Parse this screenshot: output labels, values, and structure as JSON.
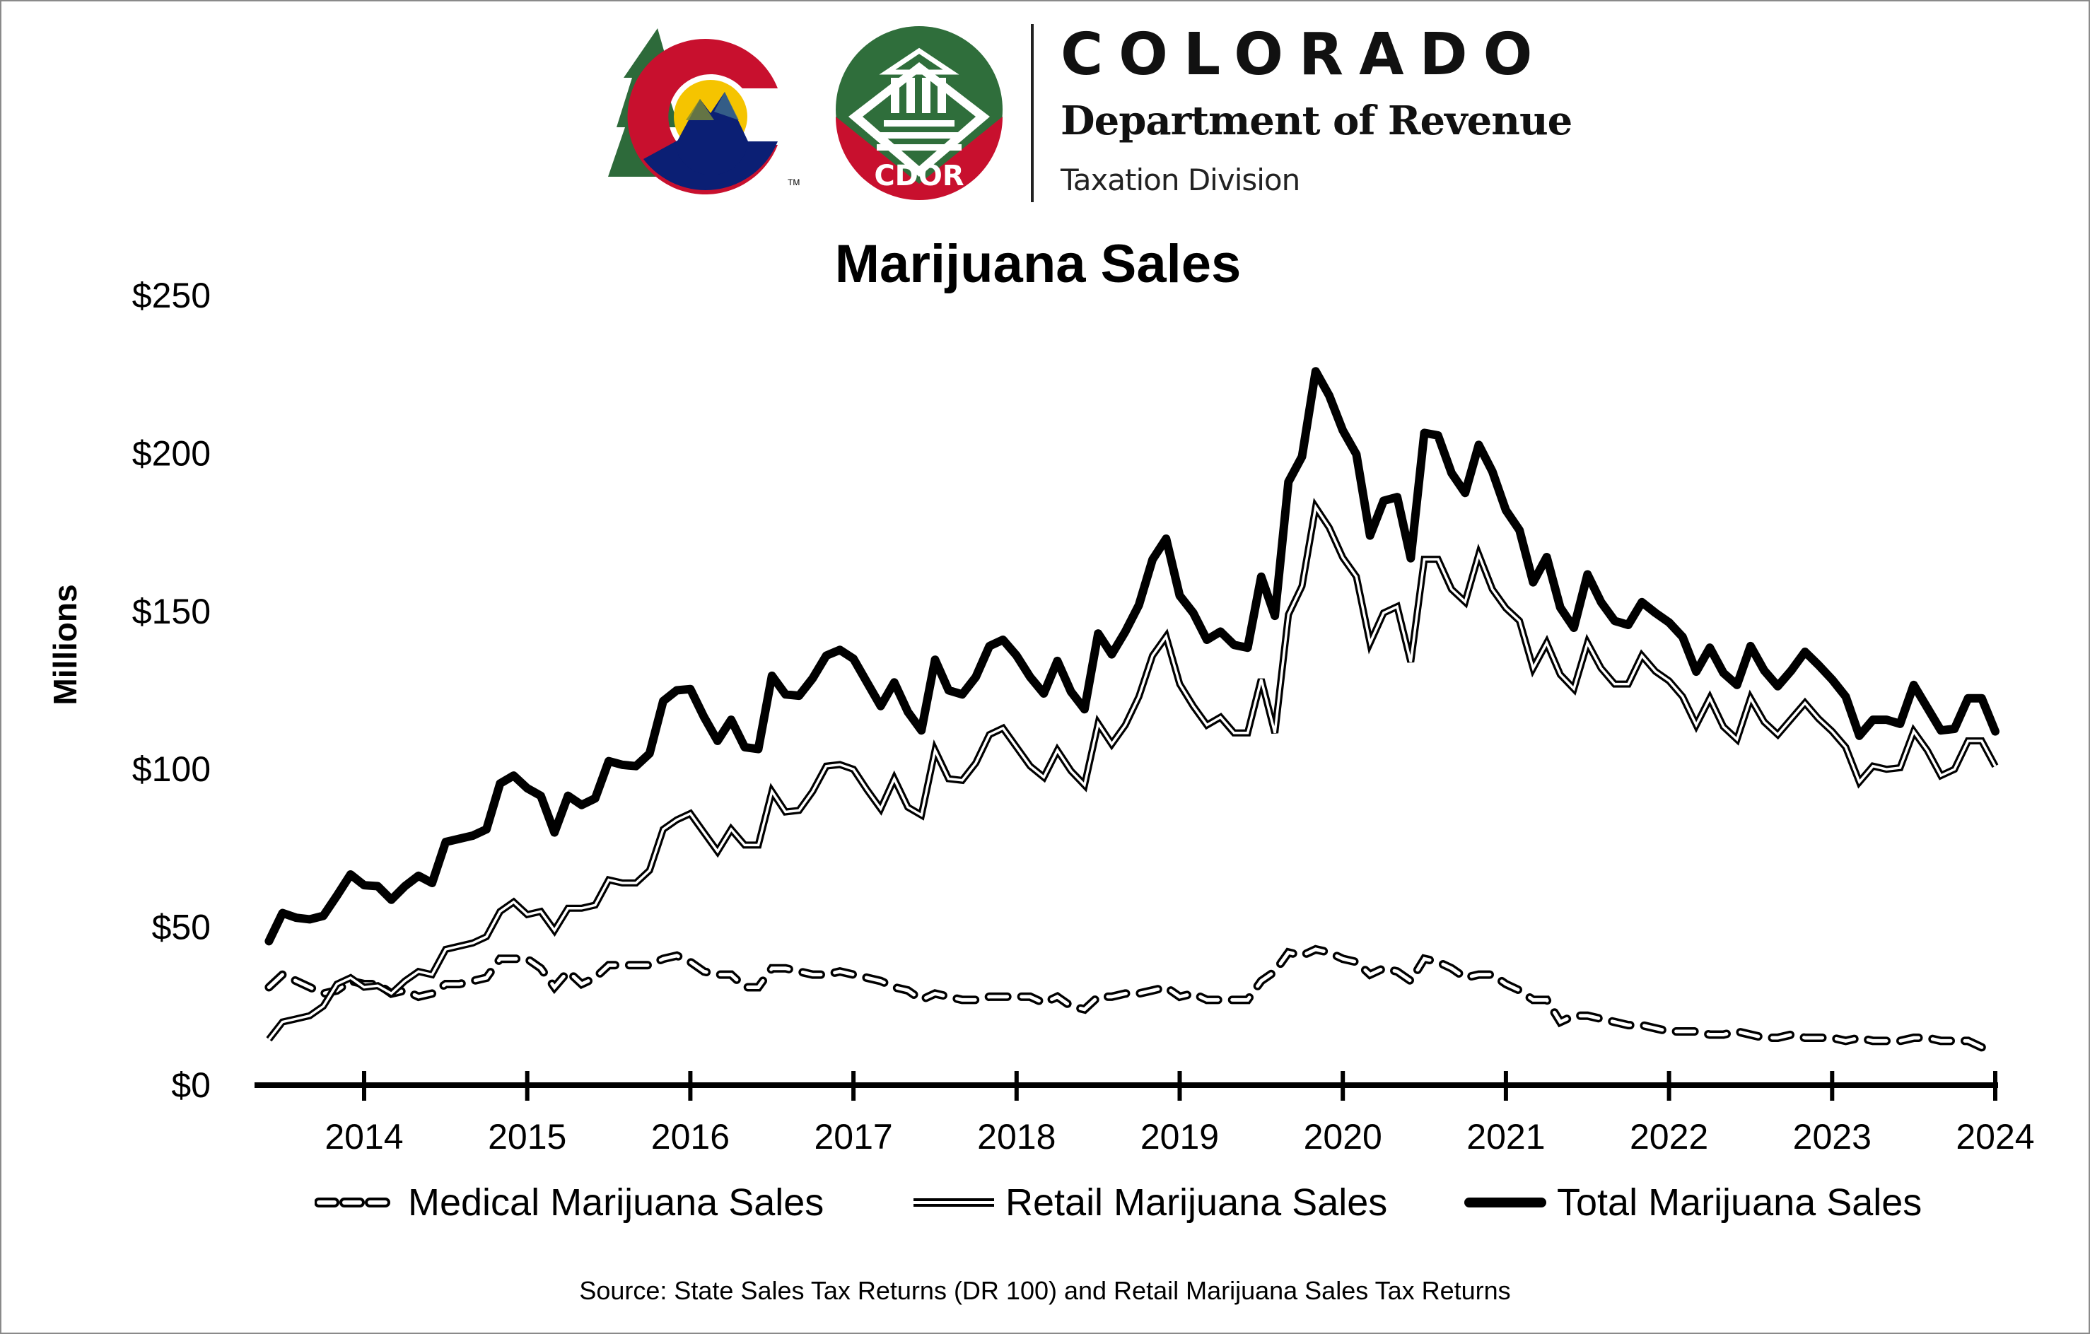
{
  "header": {
    "org_name": "COLORADO",
    "department": "Department of Revenue",
    "division": "Taxation Division",
    "badge_text": "CDOR",
    "trademark": "TM",
    "colors": {
      "tree_green": "#2d6a3a",
      "c_red": "#c8102e",
      "c_blue": "#0b1f74",
      "sun_yellow": "#f5c400",
      "seal_green": "#2f6e3b",
      "seal_red": "#c8102e"
    }
  },
  "footer": {
    "source": "Source: State Sales Tax Returns (DR 100) and Retail Marijuana Sales Tax Returns"
  },
  "chart_data": {
    "type": "line",
    "title": "Marijuana Sales",
    "xlabel": "",
    "ylabel": "Millions",
    "x_start": "2013-06",
    "x_frequency": "monthly",
    "x_range": [
      2013.42,
      2024.0
    ],
    "ylim": [
      0,
      250
    ],
    "y_ticks": [
      0,
      50,
      100,
      150,
      200,
      250
    ],
    "y_tick_labels": [
      "$0",
      "$50",
      "$100",
      "$150",
      "$200",
      "$250"
    ],
    "x_ticks": [
      2014,
      2015,
      2016,
      2017,
      2018,
      2019,
      2020,
      2021,
      2022,
      2023,
      2024
    ],
    "x_tick_labels": [
      "2014",
      "2015",
      "2016",
      "2017",
      "2018",
      "2019",
      "2020",
      "2021",
      "2022",
      "2023",
      "2024"
    ],
    "grid": false,
    "legend_position": "bottom",
    "series": [
      {
        "name": "Medical Marijuana Sales",
        "style": "dashed",
        "values": [
          31,
          35,
          33,
          31,
          29,
          30,
          33,
          32,
          32,
          29,
          30,
          28,
          29,
          32,
          32,
          33,
          34,
          40,
          40,
          40,
          37,
          31,
          36,
          32,
          34,
          38,
          38,
          38,
          38,
          40,
          41,
          39,
          36,
          35,
          35,
          31,
          31,
          37,
          37,
          36,
          35,
          35,
          36,
          35,
          34,
          33,
          31,
          30,
          27,
          29,
          28,
          27,
          27,
          28,
          28,
          28,
          28,
          26,
          28,
          25,
          24,
          28,
          28,
          29,
          29,
          30,
          31,
          28,
          29,
          27,
          27,
          27,
          27,
          33,
          36,
          42,
          41,
          43,
          42,
          40,
          39,
          35,
          37,
          36,
          33,
          40,
          39,
          37,
          34,
          35,
          35,
          32,
          30,
          27,
          27,
          20,
          22,
          22,
          21,
          20,
          19,
          19,
          18,
          17,
          17,
          17,
          16,
          16,
          17,
          16,
          15,
          15,
          16,
          15,
          15,
          15,
          14,
          15,
          14,
          14,
          14,
          15,
          15,
          14,
          14,
          14,
          12
        ]
      },
      {
        "name": "Retail Marijuana Sales",
        "style": "double",
        "values": [
          14.5,
          20,
          21,
          22,
          25,
          32,
          34,
          31,
          31.5,
          29,
          33,
          36,
          35,
          43,
          44,
          45,
          47,
          55,
          58,
          54,
          55,
          49,
          56,
          56,
          57,
          65,
          64,
          64,
          68,
          81,
          84,
          86,
          80,
          74,
          81,
          76,
          76,
          93,
          86.5,
          87,
          93,
          101,
          101.5,
          100,
          93.5,
          87.5,
          97,
          88,
          85.5,
          106,
          97,
          96.5,
          102,
          111,
          113,
          107,
          101,
          97.5,
          106,
          99.5,
          95,
          114.5,
          108,
          114,
          123,
          136,
          142,
          127,
          120,
          114,
          116.5,
          111.5,
          111.5,
          128.5,
          111.5,
          149,
          158,
          183,
          176.5,
          167,
          161,
          140,
          149.5,
          151.5,
          134,
          166.5,
          166.5,
          157,
          153,
          168,
          157,
          151,
          147,
          132,
          140,
          130,
          125.5,
          140,
          132,
          127,
          127,
          136,
          131,
          128,
          123,
          114,
          122.5,
          113.5,
          109.5,
          122.5,
          115,
          111,
          116,
          121,
          116,
          112,
          107,
          96,
          101,
          100,
          100.5,
          112,
          106,
          98,
          100,
          109,
          109,
          101
        ]
      },
      {
        "name": "Total Marijuana Sales",
        "style": "bold",
        "values": [
          45.6,
          54.5,
          53,
          52.5,
          53.6,
          60,
          66.7,
          63.3,
          63,
          58.7,
          63,
          66.3,
          64,
          77,
          78,
          79,
          81,
          95.5,
          98,
          94,
          91.6,
          80,
          91.6,
          88.7,
          90.8,
          102.6,
          101.4,
          101,
          105,
          121.6,
          125,
          125.4,
          116.6,
          109,
          115.7,
          107,
          106.4,
          129.6,
          123.7,
          123.3,
          128.8,
          136,
          137.8,
          135,
          127.5,
          120,
          127.5,
          118.2,
          112.3,
          134.7,
          125,
          123.7,
          129.2,
          139,
          141,
          136,
          129.2,
          124,
          134.3,
          124.6,
          119,
          143,
          136.4,
          143.6,
          152,
          166.4,
          173,
          155,
          149.5,
          141,
          143.6,
          139.4,
          138.5,
          161,
          148.6,
          191,
          199,
          226,
          218.3,
          207.3,
          199.7,
          174,
          185,
          186.2,
          166.8,
          206.5,
          205.7,
          193.8,
          187.5,
          202.7,
          194.3,
          182,
          175.7,
          159.2,
          167.2,
          151.2,
          144.8,
          161.7,
          152.9,
          147,
          145.7,
          152.9,
          149.5,
          146.5,
          141.9,
          130.9,
          138.5,
          130.5,
          126.7,
          139,
          131.3,
          126.3,
          131.3,
          137.2,
          133,
          128.4,
          123,
          110.6,
          115.7,
          115.7,
          114.4,
          126.7,
          119.5,
          112.3,
          112.8,
          122.5,
          122.5,
          112
        ]
      }
    ]
  }
}
